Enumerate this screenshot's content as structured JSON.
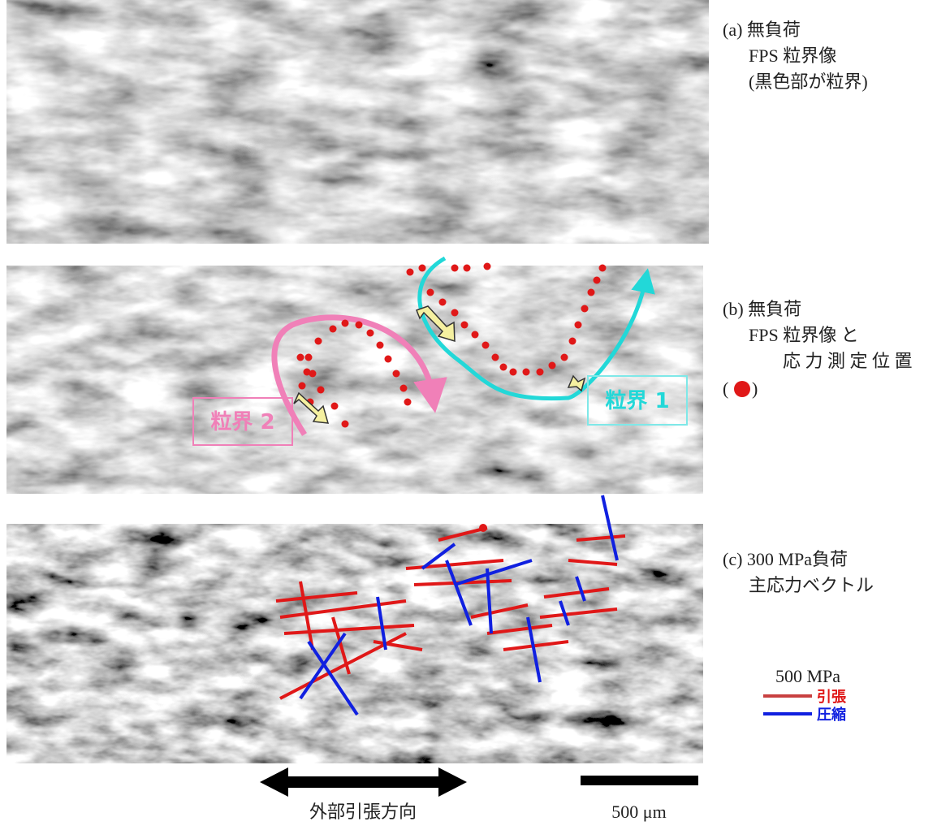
{
  "panel_a": {
    "lines": [
      "(a) 無負荷",
      "FPS 粒界像",
      "(黒色部が粒界)"
    ]
  },
  "panel_b": {
    "lines": [
      "(b) 無負荷",
      "FPS 粒界像 と",
      "応 力 測 定 位 置"
    ],
    "marker_open": "(",
    "marker_close": ")",
    "boundary_1": "粒界 1",
    "boundary_2": "粒界 2"
  },
  "panel_c": {
    "lines": [
      "(c) 300 MPa負荷",
      "主応力ベクトル"
    ]
  },
  "legend": {
    "scale": "500 MPa",
    "tension": "引張",
    "compression": "圧縮"
  },
  "footer": {
    "direction": "外部引張方向",
    "scale_bar": "500 μm"
  }
}
